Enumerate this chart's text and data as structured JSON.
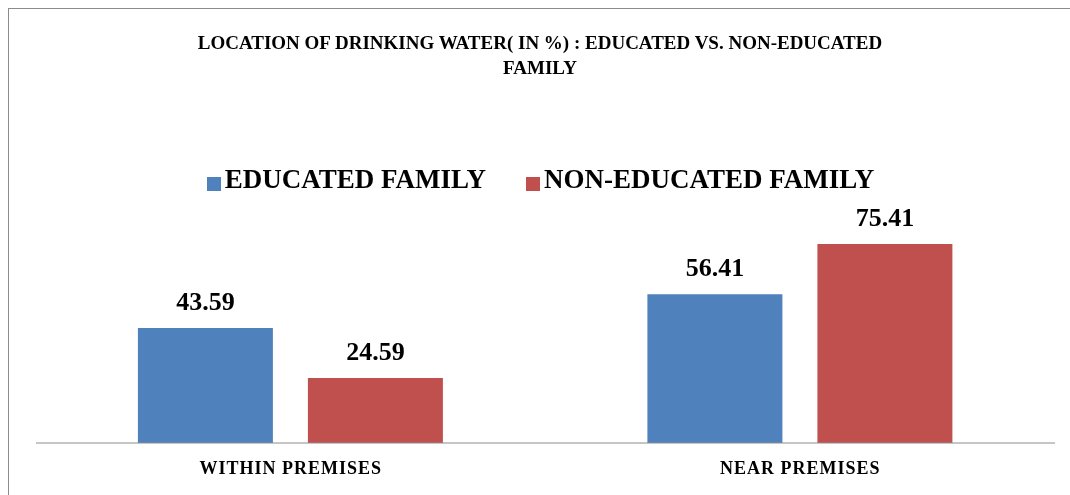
{
  "chart_data": {
    "type": "bar",
    "title": "LOCATION OF DRINKING WATER( IN %) : EDUCATED VS. NON-EDUCATED FAMILY",
    "categories": [
      "WITHIN PREMISES",
      "NEAR PREMISES"
    ],
    "series": [
      {
        "name": "EDUCATED FAMILY",
        "color": "#4f81bd",
        "values": [
          43.59,
          56.41
        ]
      },
      {
        "name": "NON-EDUCATED FAMILY",
        "color": "#c0504d",
        "values": [
          24.59,
          75.41
        ]
      }
    ],
    "data_labels": true,
    "legend": "top",
    "tick_labels": "x"
  }
}
